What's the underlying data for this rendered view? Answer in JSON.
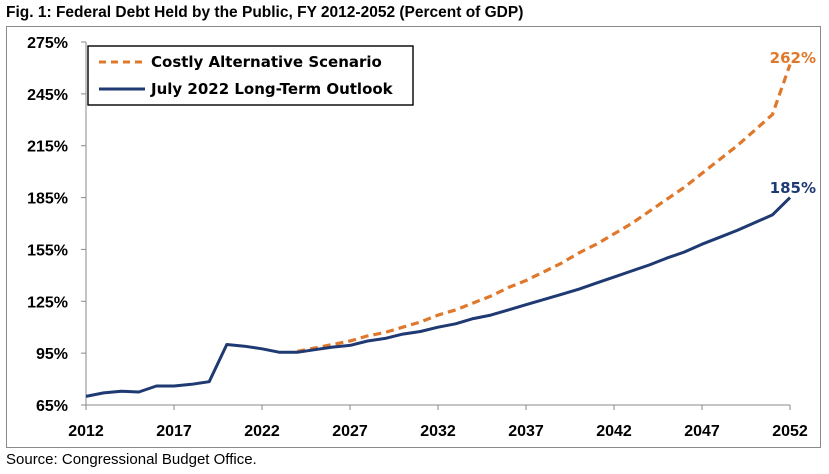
{
  "figure": {
    "title": "Fig. 1: Federal Debt Held by the Public, FY 2012-2052 (Percent of GDP)",
    "source": "Source: Congressional Budget Office."
  },
  "colors": {
    "baseline": "#1f3a73",
    "alternative": "#e0782b",
    "axis": "#8a8a8a"
  },
  "chart_data": {
    "type": "line",
    "title": "Fig. 1: Federal Debt Held by the Public, FY 2012-2052 (Percent of GDP)",
    "xlabel": "",
    "ylabel": "",
    "xlim": [
      2012,
      2052
    ],
    "ylim": [
      65,
      275
    ],
    "x_ticks": [
      2012,
      2017,
      2022,
      2027,
      2032,
      2037,
      2042,
      2047,
      2052
    ],
    "x_tick_labels": [
      "2012",
      "2017",
      "2022",
      "2027",
      "2032",
      "2037",
      "2042",
      "2047",
      "2052"
    ],
    "y_ticks": [
      65,
      95,
      125,
      155,
      185,
      215,
      245,
      275
    ],
    "y_tick_labels": [
      "65%",
      "95%",
      "125%",
      "155%",
      "185%",
      "215%",
      "245%",
      "275%"
    ],
    "grid": false,
    "legend": {
      "placement": "top-left",
      "entries": [
        "Costly Alternative Scenario",
        "July 2022 Long-Term Outlook"
      ]
    },
    "series": [
      {
        "name": "Costly Alternative Scenario",
        "style": "dashed",
        "color": "#e0782b",
        "end_label": "262%",
        "x": [
          2024,
          2025,
          2026,
          2027,
          2028,
          2029,
          2030,
          2031,
          2032,
          2033,
          2034,
          2035,
          2036,
          2037,
          2038,
          2039,
          2040,
          2041,
          2042,
          2043,
          2044,
          2045,
          2046,
          2047,
          2048,
          2049,
          2050,
          2051,
          2052
        ],
        "y": [
          96,
          98,
          100,
          102,
          105,
          107,
          110,
          113,
          117,
          120,
          124,
          128,
          133,
          137,
          142,
          147,
          153,
          158,
          164,
          170,
          177,
          184,
          191,
          199,
          207,
          215,
          224,
          233,
          262
        ]
      },
      {
        "name": "July 2022 Long-Term Outlook",
        "style": "solid",
        "color": "#1f3a73",
        "end_label": "185%",
        "x": [
          2012,
          2013,
          2014,
          2015,
          2016,
          2017,
          2018,
          2019,
          2020,
          2021,
          2022,
          2023,
          2024,
          2025,
          2026,
          2027,
          2028,
          2029,
          2030,
          2031,
          2032,
          2033,
          2034,
          2035,
          2036,
          2037,
          2038,
          2039,
          2040,
          2041,
          2042,
          2043,
          2044,
          2045,
          2046,
          2047,
          2048,
          2049,
          2050,
          2051,
          2052
        ],
        "y": [
          70,
          72,
          73,
          72.5,
          76,
          76,
          77,
          78.5,
          100,
          99,
          97.5,
          95.5,
          95.5,
          97,
          98.5,
          99.5,
          102,
          103.5,
          106,
          107.5,
          110,
          112,
          115,
          117,
          120,
          123,
          126,
          129,
          132,
          135.5,
          139,
          142.5,
          146,
          150,
          153.5,
          158,
          162,
          166,
          170.5,
          175,
          185
        ]
      }
    ]
  }
}
